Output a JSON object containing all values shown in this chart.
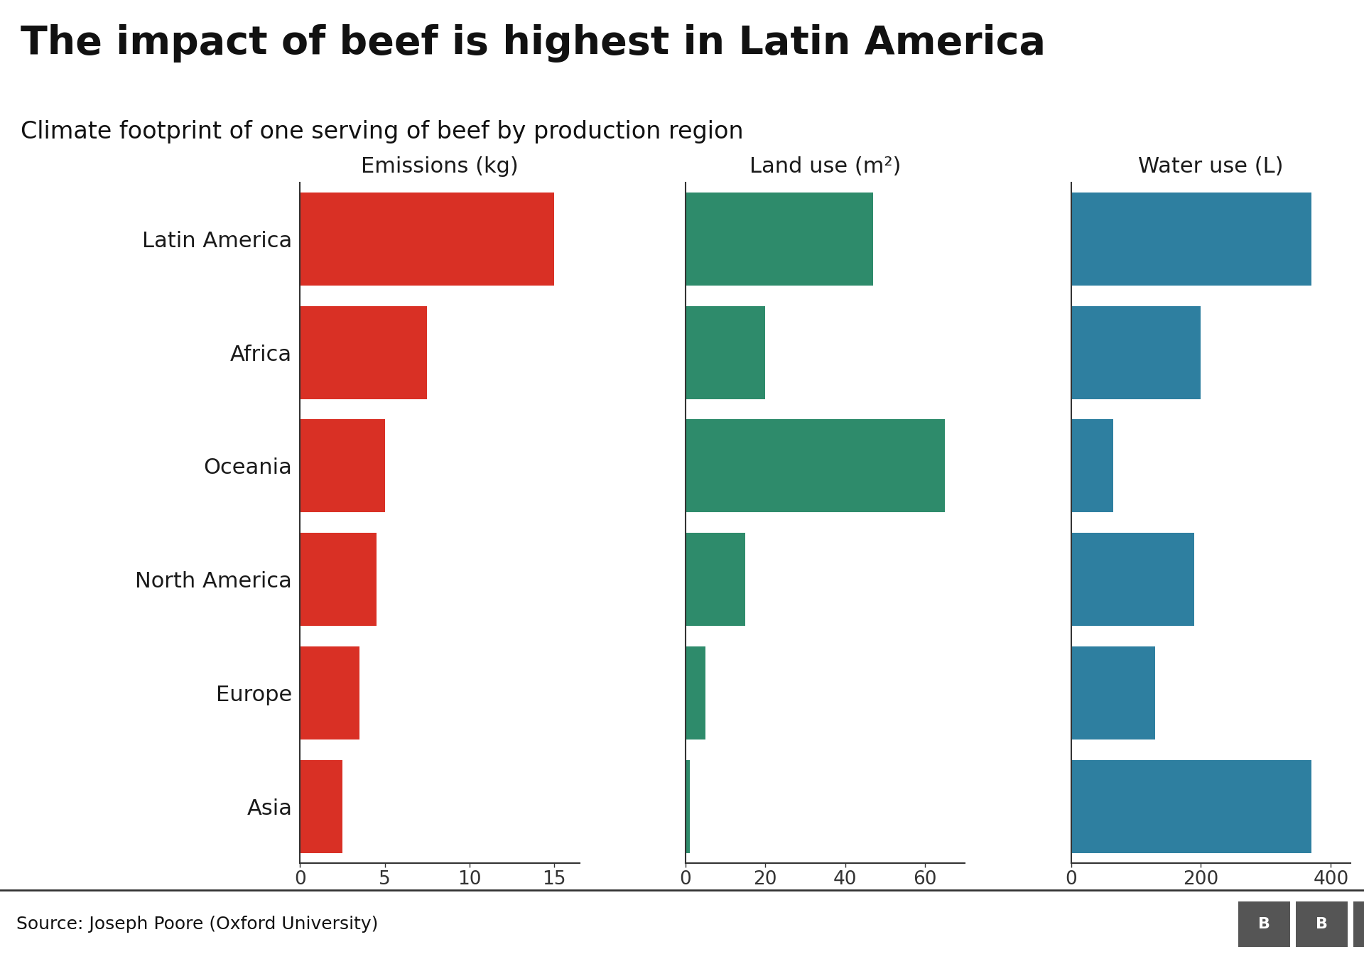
{
  "title": "The impact of beef is highest in Latin America",
  "subtitle": "Climate footprint of one serving of beef by production region",
  "source": "Source: Joseph Poore (Oxford University)",
  "regions": [
    "Latin America",
    "Africa",
    "Oceania",
    "North America",
    "Europe",
    "Asia"
  ],
  "emissions": [
    15.0,
    7.5,
    5.0,
    4.5,
    3.5,
    2.5
  ],
  "land_use": [
    47.0,
    20.0,
    65.0,
    15.0,
    5.0,
    1.0
  ],
  "water_use": [
    370.0,
    200.0,
    65.0,
    190.0,
    130.0,
    370.0
  ],
  "emissions_color": "#d93025",
  "land_color": "#2e8b6b",
  "water_color": "#2e7fa0",
  "emissions_label": "Emissions (kg)",
  "land_label": "Land use (m²)",
  "water_label": "Water use (L)",
  "emissions_xticks": [
    0,
    5,
    10,
    15
  ],
  "land_xticks": [
    0,
    20,
    40,
    60
  ],
  "water_xticks": [
    0,
    200,
    400
  ],
  "emissions_xlim": [
    0,
    16.5
  ],
  "land_xlim": [
    0,
    70
  ],
  "water_xlim": [
    0,
    430
  ],
  "background_color": "#ffffff",
  "footer_bg": "#d8d8d8",
  "title_fontsize": 40,
  "subtitle_fontsize": 24,
  "axis_label_fontsize": 22,
  "tick_fontsize": 19,
  "region_fontsize": 22,
  "source_fontsize": 18
}
